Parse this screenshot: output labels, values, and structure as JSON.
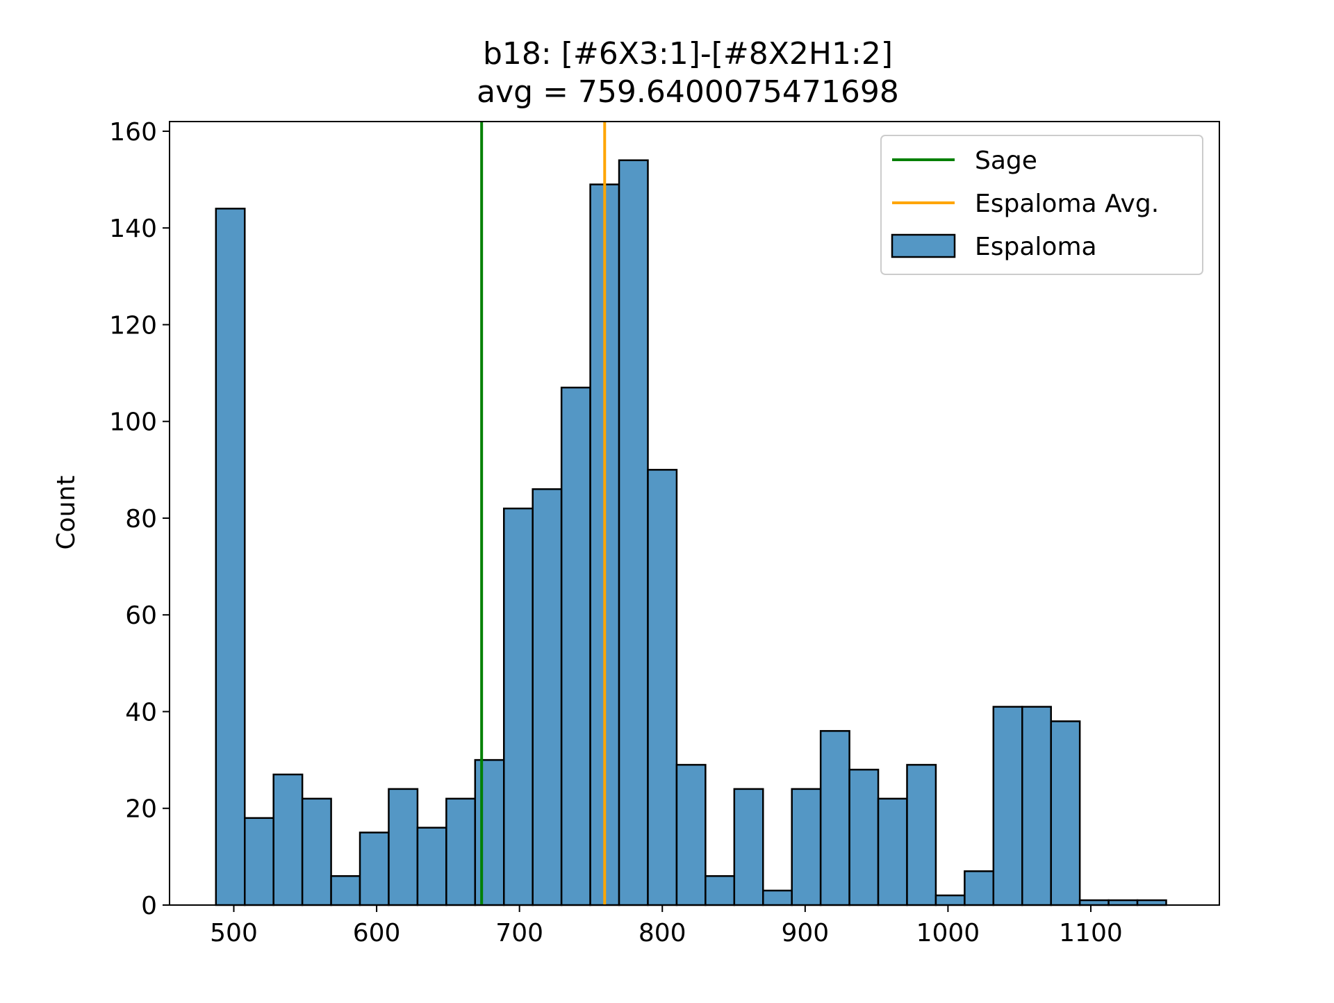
{
  "chart_data": {
    "type": "bar",
    "title_line1": "b18: [#6X3:1]-[#8X2H1:2]",
    "title_line2": "avg = 759.6400075471698",
    "xlabel": "",
    "ylabel": "Count",
    "xlim": [
      455,
      1190
    ],
    "ylim": [
      0,
      162
    ],
    "xticks": [
      500,
      600,
      700,
      800,
      900,
      1000,
      1100
    ],
    "yticks": [
      0,
      20,
      40,
      60,
      80,
      100,
      120,
      140,
      160
    ],
    "bin_start": 487.5,
    "bin_width": 20.16,
    "counts": [
      144,
      18,
      27,
      22,
      6,
      15,
      24,
      16,
      22,
      30,
      82,
      86,
      107,
      149,
      154,
      90,
      29,
      6,
      24,
      3,
      24,
      36,
      28,
      22,
      29,
      2,
      7,
      41,
      41,
      38,
      1,
      1,
      1
    ],
    "vlines": [
      {
        "name": "Sage",
        "x": 673.5,
        "color": "#008000"
      },
      {
        "name": "Espaloma Avg.",
        "x": 759.64,
        "color": "#ffa500"
      }
    ],
    "bar_color": "#5497c5",
    "bar_edge": "#000000",
    "legend": {
      "position": "upper right",
      "entries": [
        {
          "label": "Sage",
          "kind": "line",
          "color": "#008000"
        },
        {
          "label": "Espaloma Avg.",
          "kind": "line",
          "color": "#ffa500"
        },
        {
          "label": "Espaloma",
          "kind": "patch",
          "color": "#5497c5"
        }
      ]
    },
    "grid": false
  }
}
